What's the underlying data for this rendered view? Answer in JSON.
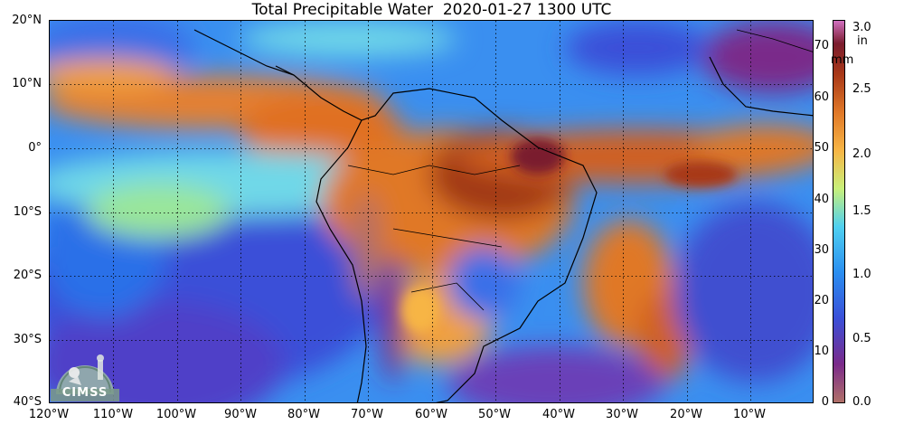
{
  "title": "Total Precipitable Water  2020-01-27 1300 UTC",
  "map": {
    "lat_labels": [
      "20°N",
      "10°N",
      "0°",
      "10°S",
      "20°S",
      "30°S",
      "40°S"
    ],
    "lon_labels": [
      "120°W",
      "110°W",
      "100°W",
      "90°W",
      "80°W",
      "70°W",
      "60°W",
      "50°W",
      "40°W",
      "30°W",
      "20°W",
      "10°W"
    ],
    "lat_range": [
      -40,
      20
    ],
    "lon_range": [
      -120,
      0
    ]
  },
  "colorbar": {
    "mm_unit": "mm",
    "in_unit": "in",
    "mm_ticks": [
      "0",
      "10",
      "20",
      "30",
      "40",
      "50",
      "60",
      "70"
    ],
    "in_ticks": [
      "0.0",
      "0.5",
      "1.0",
      "1.5",
      "2.0",
      "2.5",
      "3.0"
    ],
    "mm_range": [
      0,
      76
    ],
    "colors": [
      "#b07068",
      "#7a2a8a",
      "#3a4fd8",
      "#2a8ef0",
      "#4fd0f0",
      "#c8f07a",
      "#f7b545",
      "#e07828",
      "#a83818",
      "#7a1c2e",
      "#d070c0"
    ]
  },
  "logo": {
    "text": "CIMSS"
  }
}
